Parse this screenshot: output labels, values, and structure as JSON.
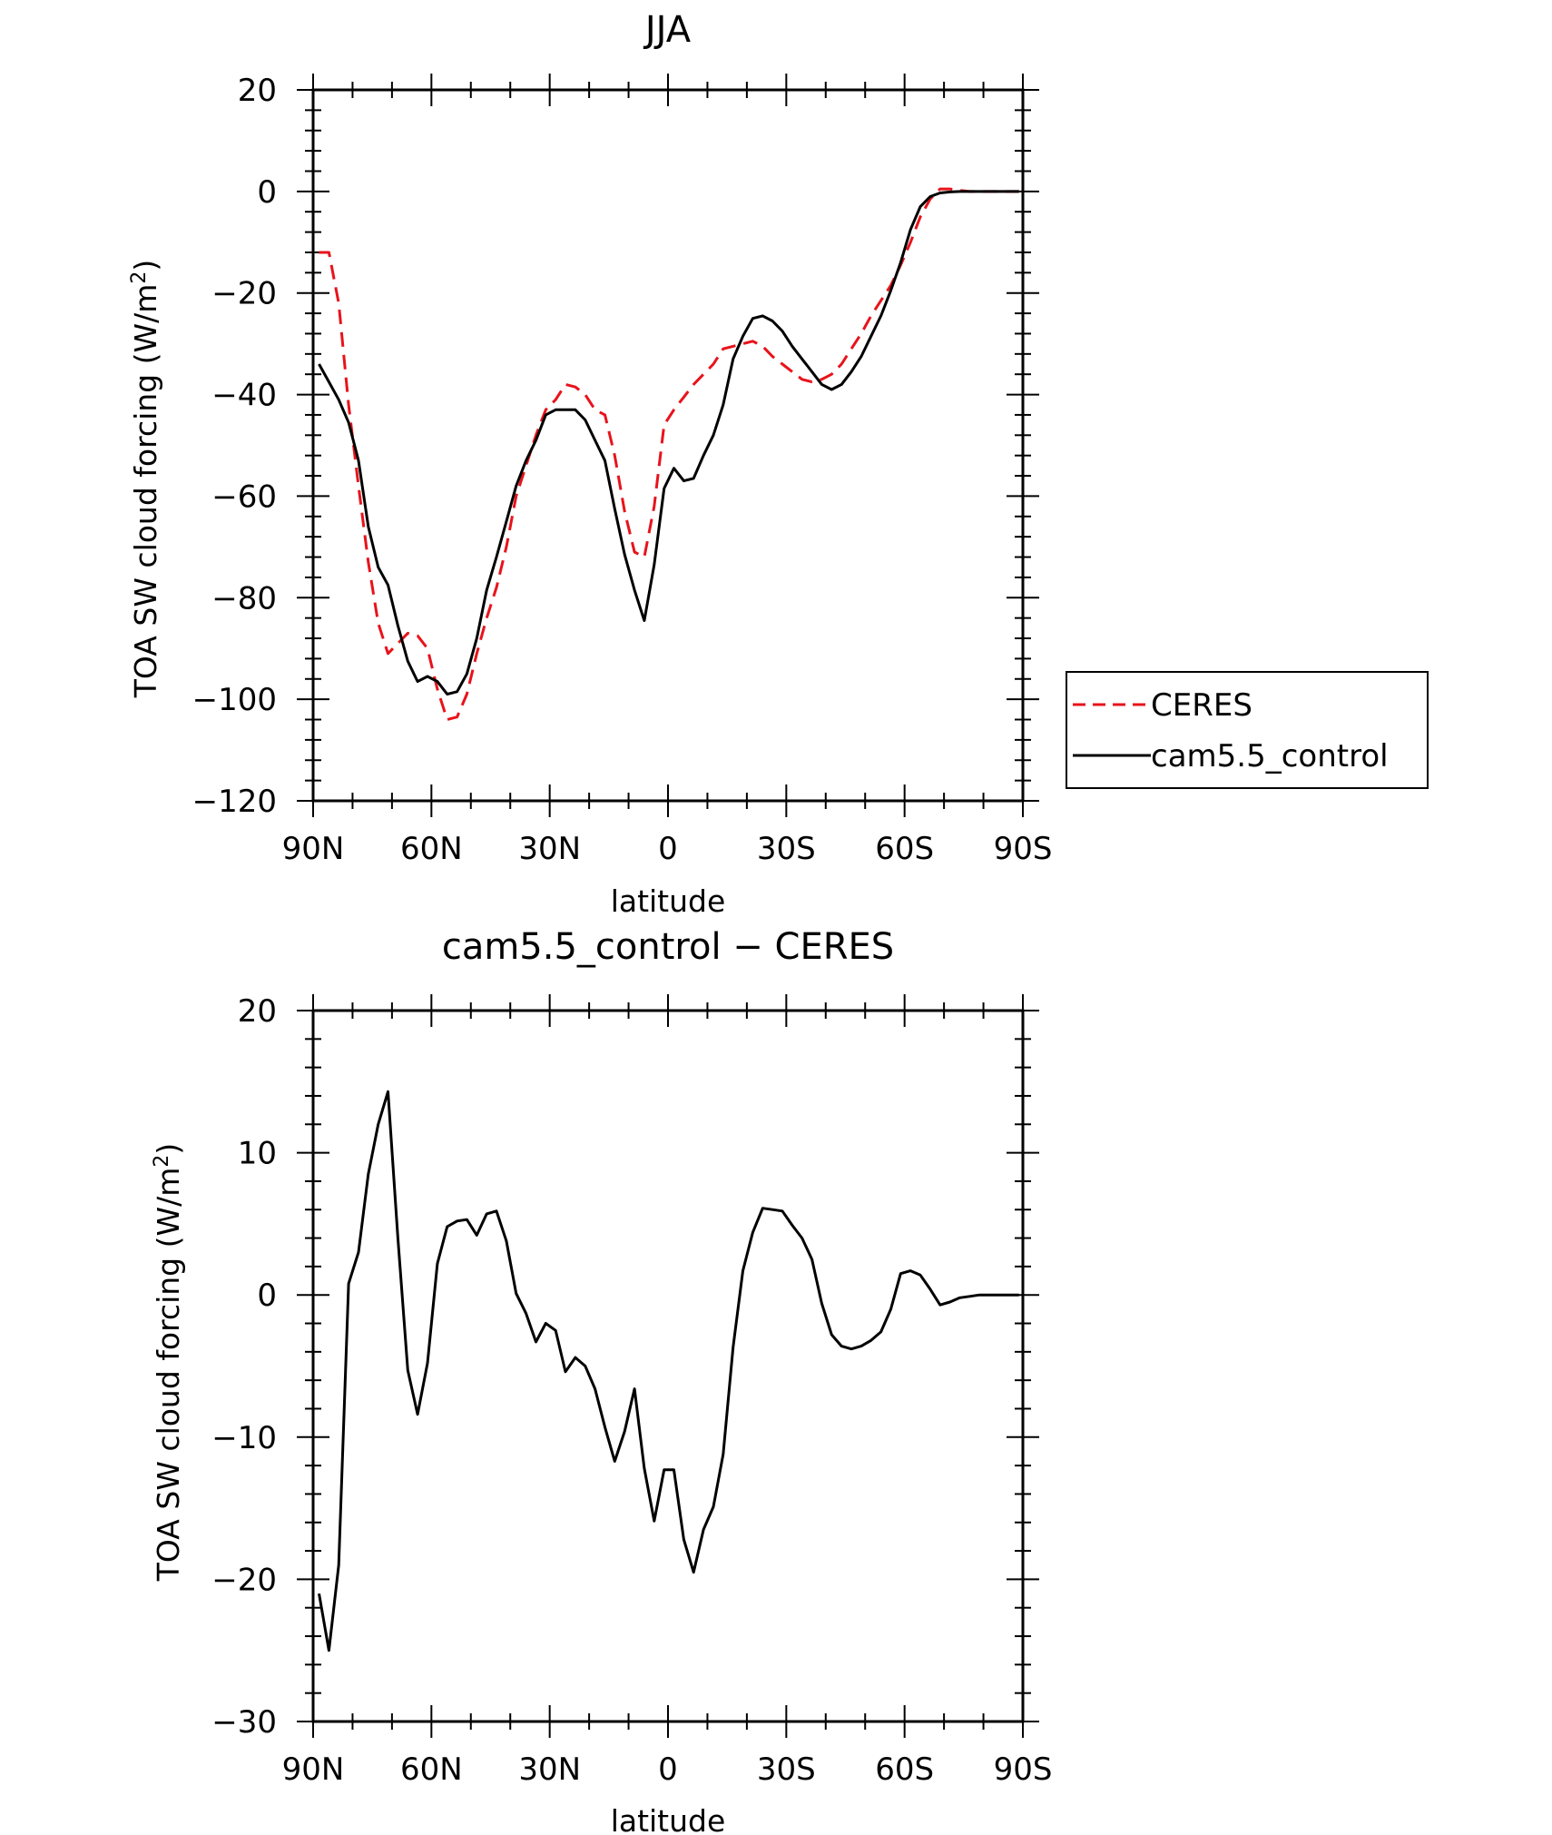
{
  "chart_data": [
    {
      "type": "line",
      "title": "JJA",
      "xlabel": "latitude",
      "ylabel": "TOA SW cloud forcing (W/m",
      "ylabel_sup": "2",
      "ylabel_close": ")",
      "xlim": [
        90,
        -90
      ],
      "ylim": [
        -120,
        20
      ],
      "x_ticks": [
        {
          "value": 90,
          "label": "90N"
        },
        {
          "value": 60,
          "label": "60N"
        },
        {
          "value": 30,
          "label": "30N"
        },
        {
          "value": 0,
          "label": "0"
        },
        {
          "value": -30,
          "label": "30S"
        },
        {
          "value": -60,
          "label": "60S"
        },
        {
          "value": -90,
          "label": "90S"
        }
      ],
      "y_ticks": [
        {
          "value": 20,
          "label": "20"
        },
        {
          "value": 0,
          "label": "0"
        },
        {
          "value": -20,
          "label": "−20"
        },
        {
          "value": -40,
          "label": "−40"
        },
        {
          "value": -60,
          "label": "−60"
        },
        {
          "value": -80,
          "label": "−80"
        },
        {
          "value": -100,
          "label": "−100"
        },
        {
          "value": -120,
          "label": "−120"
        }
      ],
      "legend_position": "right",
      "series": [
        {
          "name": "CERES",
          "color": "#e8131b",
          "dash": "dashed",
          "points": [
            [
              88.5,
              -12
            ],
            [
              86,
              -12
            ],
            [
              83.5,
              -22
            ],
            [
              81,
              -42
            ],
            [
              78.5,
              -58
            ],
            [
              76,
              -73
            ],
            [
              73.5,
              -85
            ],
            [
              71,
              -91
            ],
            [
              68.5,
              -89
            ],
            [
              66,
              -87
            ],
            [
              63.5,
              -87.5
            ],
            [
              61,
              -90
            ],
            [
              58.5,
              -98
            ],
            [
              56,
              -104
            ],
            [
              53.5,
              -103.5
            ],
            [
              51,
              -99
            ],
            [
              48.5,
              -91
            ],
            [
              46,
              -84
            ],
            [
              43.5,
              -78
            ],
            [
              41,
              -70
            ],
            [
              38.5,
              -60
            ],
            [
              36,
              -54
            ],
            [
              33.5,
              -48
            ],
            [
              31,
              -43
            ],
            [
              28.5,
              -41
            ],
            [
              26,
              -38
            ],
            [
              23.5,
              -38.5
            ],
            [
              21,
              -40
            ],
            [
              18.5,
              -43
            ],
            [
              16,
              -44
            ],
            [
              13.5,
              -52
            ],
            [
              11,
              -63
            ],
            [
              8.5,
              -71
            ],
            [
              6,
              -72
            ],
            [
              3.5,
              -62
            ],
            [
              1,
              -46
            ],
            [
              -1.5,
              -43
            ],
            [
              -4,
              -40.5
            ],
            [
              -6.5,
              -38
            ],
            [
              -9,
              -36
            ],
            [
              -11.5,
              -34
            ],
            [
              -14,
              -31
            ],
            [
              -16.5,
              -30.5
            ],
            [
              -19,
              -30
            ],
            [
              -21.5,
              -29.5
            ],
            [
              -24,
              -30.5
            ],
            [
              -26.5,
              -32.5
            ],
            [
              -29,
              -34
            ],
            [
              -31.5,
              -35.5
            ],
            [
              -34,
              -37
            ],
            [
              -36.5,
              -37.5
            ],
            [
              -39,
              -37
            ],
            [
              -41.5,
              -36
            ],
            [
              -44,
              -34
            ],
            [
              -46.5,
              -31
            ],
            [
              -49,
              -28
            ],
            [
              -51.5,
              -24.5
            ],
            [
              -54,
              -21.5
            ],
            [
              -56.5,
              -18.5
            ],
            [
              -59,
              -14.5
            ],
            [
              -61.5,
              -10
            ],
            [
              -64,
              -5
            ],
            [
              -66.5,
              -1.5
            ],
            [
              -69,
              0.5
            ],
            [
              -71.5,
              0.5
            ],
            [
              -74,
              0.2
            ],
            [
              -76.5,
              0
            ],
            [
              -79,
              0
            ],
            [
              -81.5,
              0
            ],
            [
              -84,
              0
            ],
            [
              -86.5,
              0
            ],
            [
              -89,
              0
            ]
          ]
        },
        {
          "name": "cam5.5_control",
          "color": "#000000",
          "dash": "solid",
          "points": [
            [
              88.5,
              -34
            ],
            [
              86,
              -37.5
            ],
            [
              83.5,
              -41
            ],
            [
              81,
              -45.5
            ],
            [
              78.5,
              -53
            ],
            [
              76,
              -66
            ],
            [
              73.5,
              -74
            ],
            [
              71,
              -77.5
            ],
            [
              68.5,
              -85.5
            ],
            [
              66,
              -92.5
            ],
            [
              63.5,
              -96.5
            ],
            [
              61,
              -95.5
            ],
            [
              58.5,
              -96.5
            ],
            [
              56,
              -99
            ],
            [
              53.5,
              -98.5
            ],
            [
              51,
              -95
            ],
            [
              48.5,
              -88
            ],
            [
              46,
              -78.5
            ],
            [
              43.5,
              -72
            ],
            [
              41,
              -65
            ],
            [
              38.5,
              -58
            ],
            [
              36,
              -53
            ],
            [
              33.5,
              -49
            ],
            [
              31,
              -44
            ],
            [
              28.5,
              -43
            ],
            [
              26,
              -43
            ],
            [
              23.5,
              -43
            ],
            [
              21,
              -45
            ],
            [
              18.5,
              -49
            ],
            [
              16,
              -53
            ],
            [
              13.5,
              -62.5
            ],
            [
              11,
              -71.5
            ],
            [
              8.5,
              -78.5
            ],
            [
              6,
              -84.5
            ],
            [
              3.5,
              -73.5
            ],
            [
              1,
              -58.5
            ],
            [
              -1.5,
              -54.5
            ],
            [
              -4,
              -57
            ],
            [
              -6.5,
              -56.5
            ],
            [
              -9,
              -52
            ],
            [
              -11.5,
              -48
            ],
            [
              -14,
              -42
            ],
            [
              -16.5,
              -33
            ],
            [
              -19,
              -28.5
            ],
            [
              -21.5,
              -25
            ],
            [
              -24,
              -24.5
            ],
            [
              -26.5,
              -25.5
            ],
            [
              -29,
              -27.5
            ],
            [
              -31.5,
              -30.5
            ],
            [
              -34,
              -33
            ],
            [
              -36.5,
              -35.5
            ],
            [
              -39,
              -38
            ],
            [
              -41.5,
              -39
            ],
            [
              -44,
              -38
            ],
            [
              -46.5,
              -35.5
            ],
            [
              -49,
              -32.5
            ],
            [
              -51.5,
              -28.5
            ],
            [
              -54,
              -24.5
            ],
            [
              -56.5,
              -19.5
            ],
            [
              -59,
              -14
            ],
            [
              -61.5,
              -7.5
            ],
            [
              -64,
              -3
            ],
            [
              -66.5,
              -1
            ],
            [
              -69,
              -0.3
            ],
            [
              -71.5,
              -0.1
            ],
            [
              -74,
              0
            ],
            [
              -76.5,
              0
            ],
            [
              -79,
              0
            ],
            [
              -81.5,
              0
            ],
            [
              -84,
              0
            ],
            [
              -86.5,
              0
            ],
            [
              -89,
              0
            ]
          ]
        }
      ]
    },
    {
      "type": "line",
      "title": "cam5.5_control − CERES",
      "xlabel": "latitude",
      "ylabel": "TOA SW cloud forcing (W/m",
      "ylabel_sup": "2",
      "ylabel_close": ")",
      "xlim": [
        90,
        -90
      ],
      "ylim": [
        -30,
        20
      ],
      "x_ticks": [
        {
          "value": 90,
          "label": "90N"
        },
        {
          "value": 60,
          "label": "60N"
        },
        {
          "value": 30,
          "label": "30N"
        },
        {
          "value": 0,
          "label": "0"
        },
        {
          "value": -30,
          "label": "30S"
        },
        {
          "value": -60,
          "label": "60S"
        },
        {
          "value": -90,
          "label": "90S"
        }
      ],
      "y_ticks": [
        {
          "value": 20,
          "label": "20"
        },
        {
          "value": 10,
          "label": "10"
        },
        {
          "value": 0,
          "label": "0"
        },
        {
          "value": -10,
          "label": "−10"
        },
        {
          "value": -20,
          "label": "−20"
        },
        {
          "value": -30,
          "label": "−30"
        }
      ],
      "series": [
        {
          "color": "#000000",
          "dash": "solid",
          "points": [
            [
              88.5,
              -21
            ],
            [
              86,
              -25
            ],
            [
              83.5,
              -19
            ],
            [
              81,
              0.8
            ],
            [
              78.5,
              3
            ],
            [
              76,
              8.5
            ],
            [
              73.5,
              12
            ],
            [
              71,
              14.3
            ],
            [
              68.5,
              4
            ],
            [
              66,
              -5.3
            ],
            [
              63.5,
              -8.4
            ],
            [
              61,
              -4.8
            ],
            [
              58.5,
              2.2
            ],
            [
              56,
              4.8
            ],
            [
              53.5,
              5.2
            ],
            [
              51,
              5.3
            ],
            [
              48.5,
              4.2
            ],
            [
              46,
              5.7
            ],
            [
              43.5,
              5.9
            ],
            [
              41,
              3.8
            ],
            [
              38.5,
              0.1
            ],
            [
              36,
              -1.3
            ],
            [
              33.5,
              -3.3
            ],
            [
              31,
              -2
            ],
            [
              28.5,
              -2.5
            ],
            [
              26,
              -5.4
            ],
            [
              23.5,
              -4.4
            ],
            [
              21,
              -5
            ],
            [
              18.5,
              -6.6
            ],
            [
              16,
              -9.3
            ],
            [
              13.5,
              -11.7
            ],
            [
              11,
              -9.6
            ],
            [
              8.5,
              -6.6
            ],
            [
              6,
              -12.2
            ],
            [
              3.5,
              -15.9
            ],
            [
              1,
              -12.3
            ],
            [
              -1.5,
              -12.3
            ],
            [
              -4,
              -17.2
            ],
            [
              -6.5,
              -19.5
            ],
            [
              -9,
              -16.5
            ],
            [
              -11.5,
              -14.9
            ],
            [
              -14,
              -11.2
            ],
            [
              -16.5,
              -3.7
            ],
            [
              -19,
              1.7
            ],
            [
              -21.5,
              4.4
            ],
            [
              -24,
              6.1
            ],
            [
              -26.5,
              6
            ],
            [
              -29,
              5.9
            ],
            [
              -31.5,
              4.9
            ],
            [
              -34,
              4
            ],
            [
              -36.5,
              2.5
            ],
            [
              -39,
              -0.6
            ],
            [
              -41.5,
              -2.8
            ],
            [
              -44,
              -3.6
            ],
            [
              -46.5,
              -3.8
            ],
            [
              -49,
              -3.6
            ],
            [
              -51.5,
              -3.2
            ],
            [
              -54,
              -2.6
            ],
            [
              -56.5,
              -1
            ],
            [
              -59,
              1.5
            ],
            [
              -61.5,
              1.7
            ],
            [
              -64,
              1.4
            ],
            [
              -66.5,
              0.4
            ],
            [
              -69,
              -0.7
            ],
            [
              -71.5,
              -0.5
            ],
            [
              -74,
              -0.2
            ],
            [
              -76.5,
              -0.1
            ],
            [
              -79,
              0
            ],
            [
              -81.5,
              0
            ],
            [
              -84,
              0
            ],
            [
              -86.5,
              0
            ],
            [
              -89,
              0
            ]
          ]
        }
      ]
    }
  ]
}
